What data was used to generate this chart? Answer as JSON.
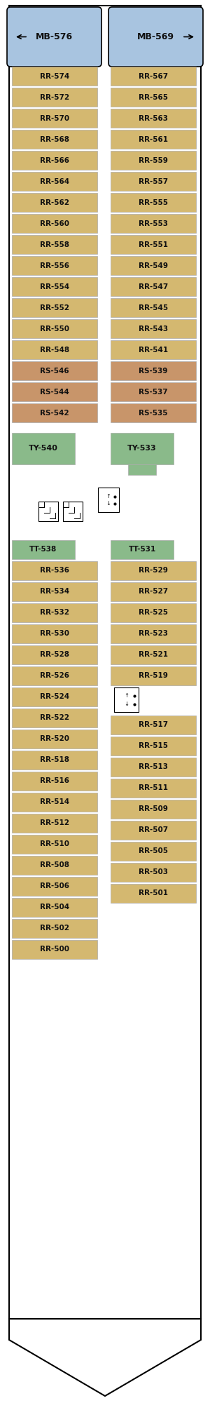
{
  "bg_color": "#ffffff",
  "rr_color": "#d4b870",
  "rs_color": "#c8956a",
  "mb_color": "#a8c4e0",
  "tt_color": "#8aba8a",
  "ty_color": "#8aba8a",
  "top_section": {
    "left": [
      {
        "label": "MB-576",
        "color": "mb"
      },
      {
        "label": "RR-574",
        "color": "rr"
      },
      {
        "label": "RR-572",
        "color": "rr"
      },
      {
        "label": "RR-570",
        "color": "rr"
      },
      {
        "label": "RR-568",
        "color": "rr"
      },
      {
        "label": "RR-566",
        "color": "rr"
      },
      {
        "label": "RR-564",
        "color": "rr"
      },
      {
        "label": "RR-562",
        "color": "rr"
      },
      {
        "label": "RR-560",
        "color": "rr"
      },
      {
        "label": "RR-558",
        "color": "rr"
      },
      {
        "label": "RR-556",
        "color": "rr"
      },
      {
        "label": "RR-554",
        "color": "rr"
      },
      {
        "label": "RR-552",
        "color": "rr"
      },
      {
        "label": "RR-550",
        "color": "rr"
      },
      {
        "label": "RR-548",
        "color": "rr"
      },
      {
        "label": "RS-546",
        "color": "rs"
      },
      {
        "label": "RS-544",
        "color": "rs"
      },
      {
        "label": "RS-542",
        "color": "rs"
      }
    ],
    "right": [
      {
        "label": "MB-569",
        "color": "mb"
      },
      {
        "label": "RR-567",
        "color": "rr"
      },
      {
        "label": "RR-565",
        "color": "rr"
      },
      {
        "label": "RR-563",
        "color": "rr"
      },
      {
        "label": "RR-561",
        "color": "rr"
      },
      {
        "label": "RR-559",
        "color": "rr"
      },
      {
        "label": "RR-557",
        "color": "rr"
      },
      {
        "label": "RR-555",
        "color": "rr"
      },
      {
        "label": "RR-553",
        "color": "rr"
      },
      {
        "label": "RR-551",
        "color": "rr"
      },
      {
        "label": "RR-549",
        "color": "rr"
      },
      {
        "label": "RR-547",
        "color": "rr"
      },
      {
        "label": "RR-545",
        "color": "rr"
      },
      {
        "label": "RR-543",
        "color": "rr"
      },
      {
        "label": "RR-541",
        "color": "rr"
      },
      {
        "label": "RS-539",
        "color": "rs"
      },
      {
        "label": "RS-537",
        "color": "rs"
      },
      {
        "label": "RS-535",
        "color": "rs"
      }
    ]
  },
  "ty_section": {
    "left": {
      "label": "TY-540",
      "color": "ty"
    },
    "right": {
      "label": "TY-533",
      "color": "ty"
    }
  },
  "bottom_section": {
    "left": [
      {
        "label": "TT-538",
        "color": "tt"
      },
      {
        "label": "RR-536",
        "color": "rr"
      },
      {
        "label": "RR-534",
        "color": "rr"
      },
      {
        "label": "RR-532",
        "color": "rr"
      },
      {
        "label": "RR-530",
        "color": "rr"
      },
      {
        "label": "RR-528",
        "color": "rr"
      },
      {
        "label": "RR-526",
        "color": "rr"
      },
      {
        "label": "RR-524",
        "color": "rr"
      },
      {
        "label": "RR-522",
        "color": "rr"
      },
      {
        "label": "RR-520",
        "color": "rr"
      },
      {
        "label": "RR-518",
        "color": "rr"
      },
      {
        "label": "RR-516",
        "color": "rr"
      },
      {
        "label": "RR-514",
        "color": "rr"
      },
      {
        "label": "RR-512",
        "color": "rr"
      },
      {
        "label": "RR-510",
        "color": "rr"
      },
      {
        "label": "RR-508",
        "color": "rr"
      },
      {
        "label": "RR-506",
        "color": "rr"
      },
      {
        "label": "RR-504",
        "color": "rr"
      },
      {
        "label": "RR-502",
        "color": "rr"
      },
      {
        "label": "RR-500",
        "color": "rr"
      }
    ],
    "right": [
      {
        "label": "TT-531",
        "color": "tt"
      },
      {
        "label": "RR-529",
        "color": "rr"
      },
      {
        "label": "RR-527",
        "color": "rr"
      },
      {
        "label": "RR-525",
        "color": "rr"
      },
      {
        "label": "RR-523",
        "color": "rr"
      },
      {
        "label": "RR-521",
        "color": "rr"
      },
      {
        "label": "RR-519",
        "color": "rr"
      },
      {
        "label": "RR-517",
        "color": "rr"
      },
      {
        "label": "RR-515",
        "color": "rr"
      },
      {
        "label": "RR-513",
        "color": "rr"
      },
      {
        "label": "RR-511",
        "color": "rr"
      },
      {
        "label": "RR-509",
        "color": "rr"
      },
      {
        "label": "RR-507",
        "color": "rr"
      },
      {
        "label": "RR-505",
        "color": "rr"
      },
      {
        "label": "RR-503",
        "color": "rr"
      },
      {
        "label": "RR-501",
        "color": "rr"
      }
    ]
  }
}
